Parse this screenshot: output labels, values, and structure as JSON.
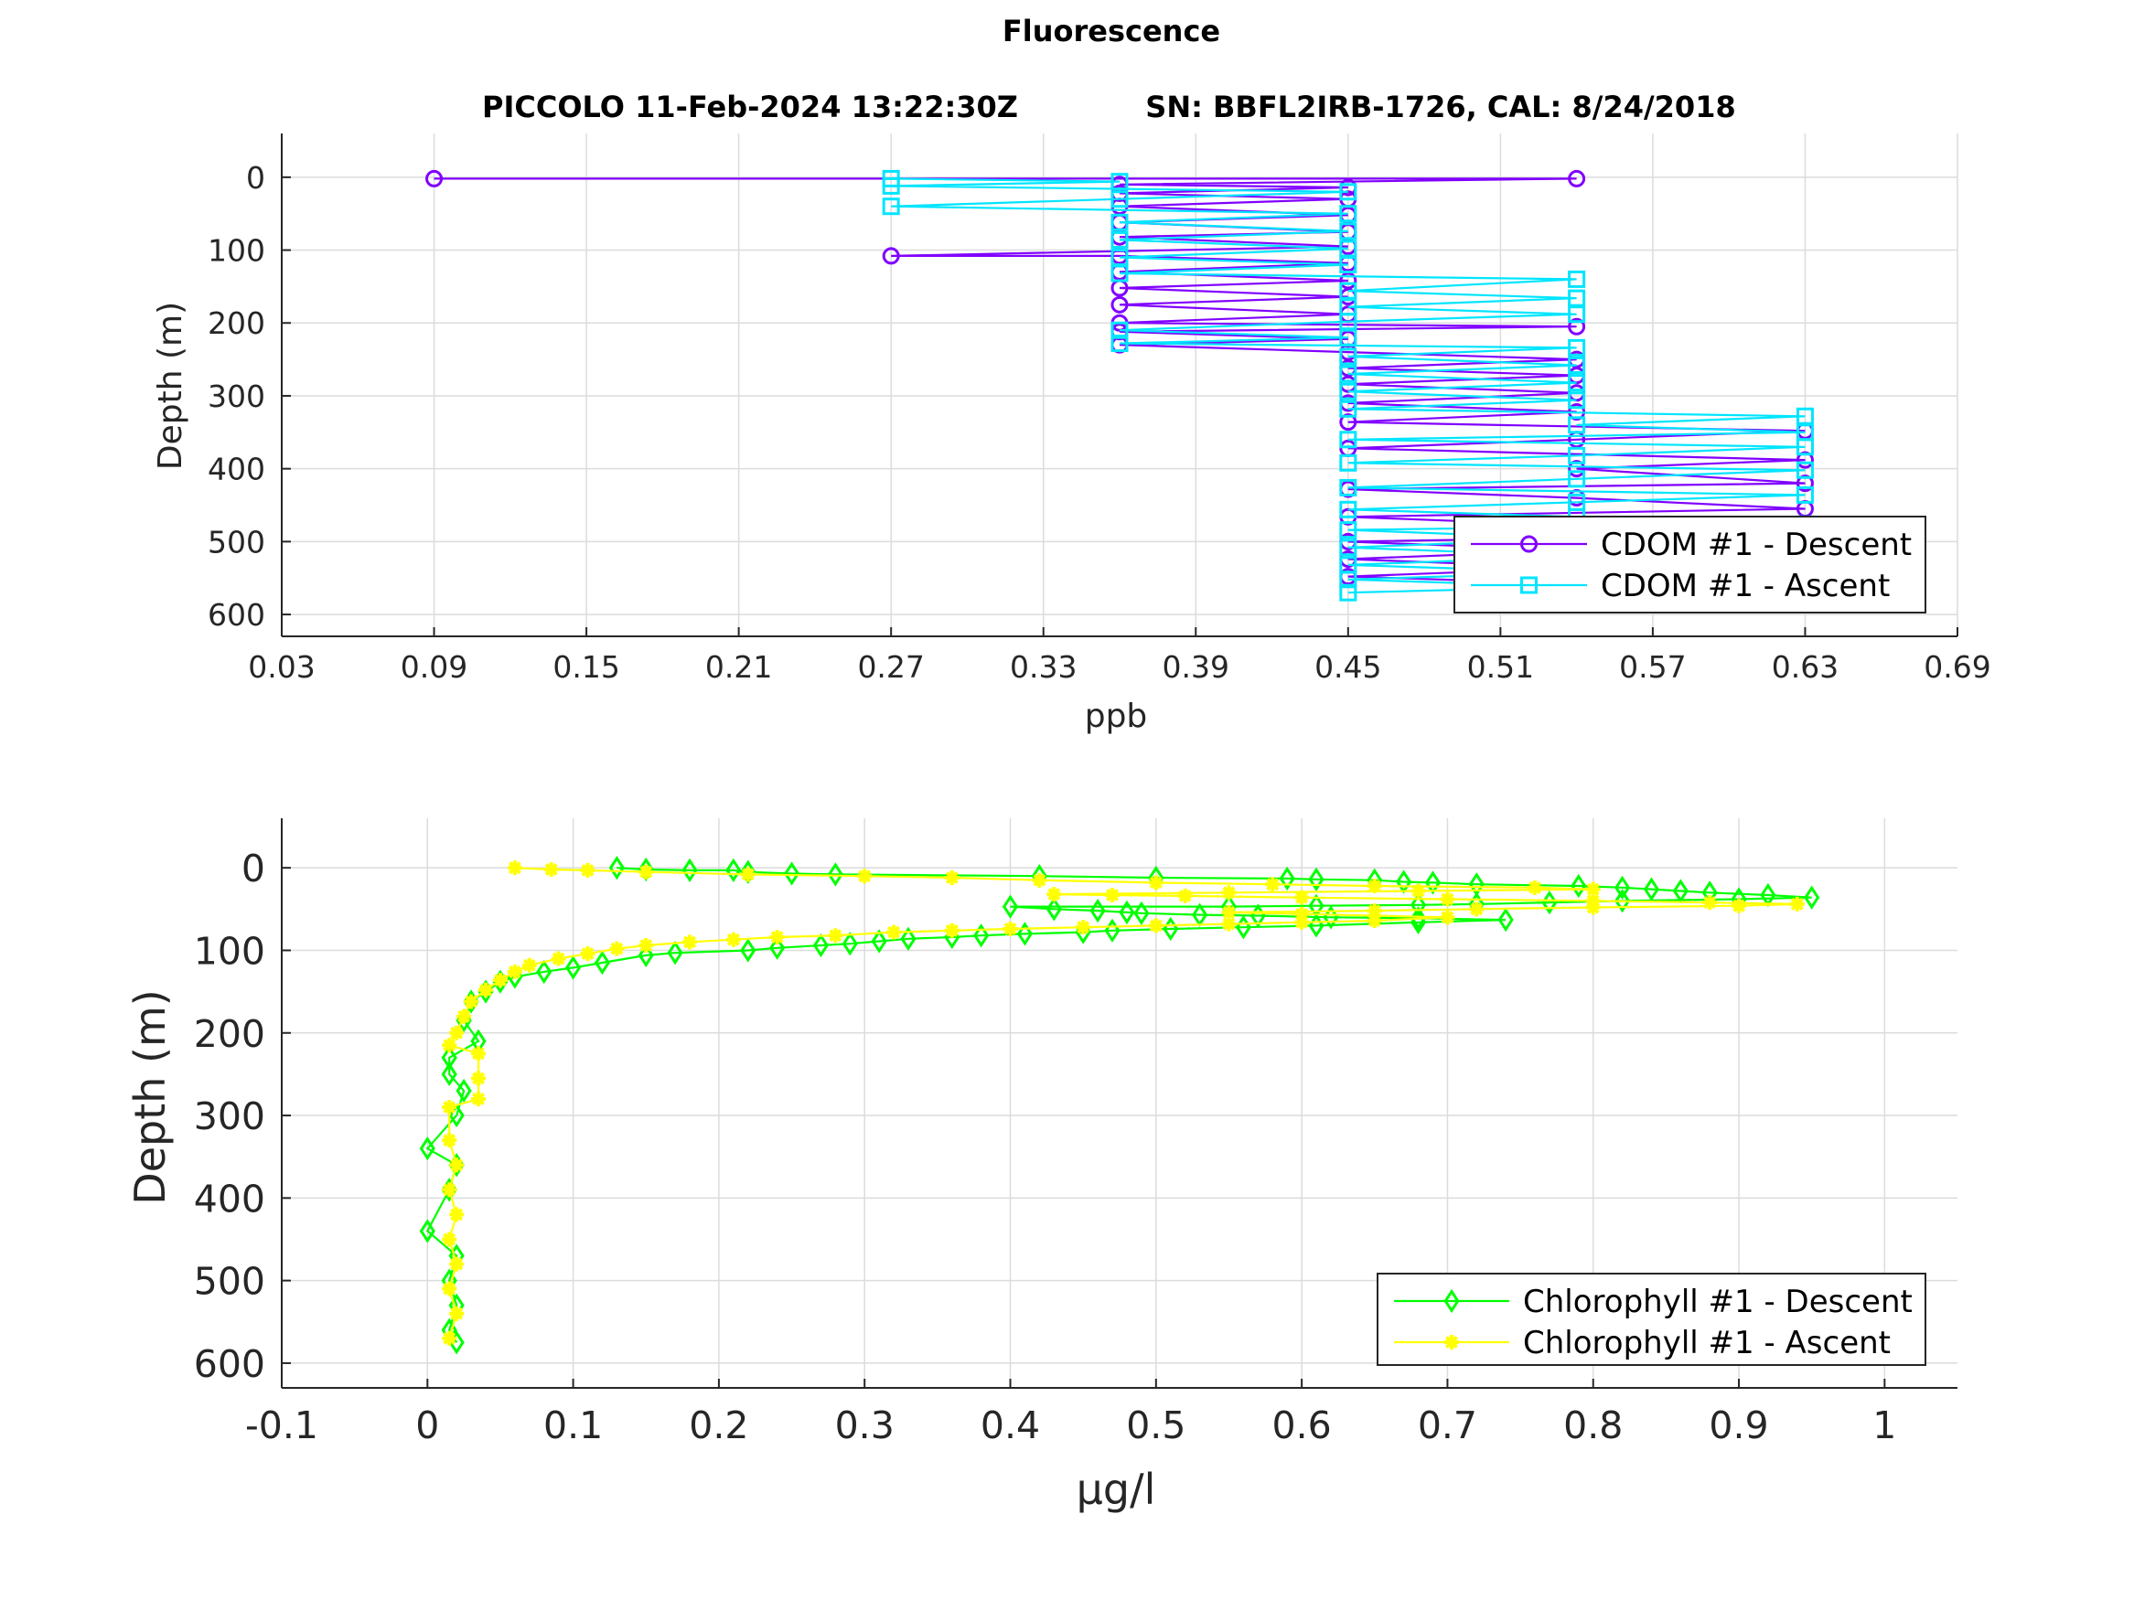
{
  "figure": {
    "title": "Fluorescence"
  },
  "chart_data": [
    {
      "type": "line",
      "subtitle_left": "PICCOLO 11-Feb-2024 13:22:30Z",
      "subtitle_right": "SN: BBFL2IRB-1726, CAL: 8/24/2018",
      "xlabel": "ppb",
      "ylabel": "Depth (m)",
      "xlim": [
        0.03,
        0.69
      ],
      "ylim": [
        630,
        -60
      ],
      "y_reversed": true,
      "xticks": [
        "0.03",
        "0.09",
        "0.15",
        "0.21",
        "0.27",
        "0.33",
        "0.39",
        "0.45",
        "0.51",
        "0.57",
        "0.63",
        "0.69"
      ],
      "yticks": [
        "0",
        "100",
        "200",
        "300",
        "400",
        "500",
        "600"
      ],
      "grid": true,
      "legend_position": "bottom-right",
      "series": [
        {
          "name": "CDOM #1 - Descent",
          "color": "#8000ff",
          "marker": "circle",
          "points": [
            [
              0.09,
              2
            ],
            [
              0.54,
              2
            ],
            [
              0.36,
              10
            ],
            [
              0.45,
              14
            ],
            [
              0.36,
              22
            ],
            [
              0.45,
              30
            ],
            [
              0.36,
              40
            ],
            [
              0.45,
              52
            ],
            [
              0.36,
              62
            ],
            [
              0.45,
              75
            ],
            [
              0.36,
              82
            ],
            [
              0.45,
              95
            ],
            [
              0.27,
              108
            ],
            [
              0.36,
              108
            ],
            [
              0.45,
              118
            ],
            [
              0.36,
              130
            ],
            [
              0.45,
              142
            ],
            [
              0.36,
              152
            ],
            [
              0.45,
              164
            ],
            [
              0.36,
              175
            ],
            [
              0.45,
              188
            ],
            [
              0.36,
              200
            ],
            [
              0.54,
              205
            ],
            [
              0.36,
              212
            ],
            [
              0.45,
              222
            ],
            [
              0.36,
              230
            ],
            [
              0.45,
              240
            ],
            [
              0.54,
              250
            ],
            [
              0.45,
              262
            ],
            [
              0.54,
              272
            ],
            [
              0.45,
              284
            ],
            [
              0.54,
              296
            ],
            [
              0.45,
              310
            ],
            [
              0.54,
              322
            ],
            [
              0.45,
              336
            ],
            [
              0.63,
              348
            ],
            [
              0.54,
              360
            ],
            [
              0.45,
              372
            ],
            [
              0.63,
              388
            ],
            [
              0.54,
              400
            ],
            [
              0.63,
              420
            ],
            [
              0.45,
              428
            ],
            [
              0.54,
              440
            ],
            [
              0.63,
              455
            ],
            [
              0.45,
              466
            ],
            [
              0.54,
              478
            ],
            [
              0.63,
              490
            ],
            [
              0.45,
              500
            ],
            [
              0.54,
              512
            ],
            [
              0.45,
              524
            ],
            [
              0.54,
              536
            ],
            [
              0.45,
              548
            ],
            [
              0.54,
              558
            ],
            [
              0.63,
              572
            ]
          ]
        },
        {
          "name": "CDOM #1 - Ascent",
          "color": "#00e5ff",
          "marker": "square",
          "points": [
            [
              0.45,
              570
            ],
            [
              0.54,
              562
            ],
            [
              0.45,
              552
            ],
            [
              0.54,
              542
            ],
            [
              0.45,
              532
            ],
            [
              0.54,
              520
            ],
            [
              0.45,
              508
            ],
            [
              0.54,
              496
            ],
            [
              0.45,
              484
            ],
            [
              0.63,
              476
            ],
            [
              0.54,
              466
            ],
            [
              0.45,
              456
            ],
            [
              0.54,
              446
            ],
            [
              0.63,
              436
            ],
            [
              0.45,
              426
            ],
            [
              0.54,
              414
            ],
            [
              0.63,
              402
            ],
            [
              0.45,
              392
            ],
            [
              0.54,
              382
            ],
            [
              0.63,
              370
            ],
            [
              0.45,
              360
            ],
            [
              0.63,
              350
            ],
            [
              0.54,
              340
            ],
            [
              0.63,
              328
            ],
            [
              0.45,
              318
            ],
            [
              0.54,
              306
            ],
            [
              0.45,
              294
            ],
            [
              0.54,
              282
            ],
            [
              0.45,
              270
            ],
            [
              0.54,
              258
            ],
            [
              0.45,
              246
            ],
            [
              0.54,
              234
            ],
            [
              0.36,
              228
            ],
            [
              0.45,
              220
            ],
            [
              0.36,
              210
            ],
            [
              0.45,
              198
            ],
            [
              0.54,
              188
            ],
            [
              0.45,
              178
            ],
            [
              0.54,
              166
            ],
            [
              0.45,
              156
            ],
            [
              0.54,
              140
            ],
            [
              0.36,
              132
            ],
            [
              0.45,
              120
            ],
            [
              0.36,
              110
            ],
            [
              0.45,
              98
            ],
            [
              0.36,
              86
            ],
            [
              0.45,
              74
            ],
            [
              0.36,
              62
            ],
            [
              0.45,
              50
            ],
            [
              0.27,
              40
            ],
            [
              0.36,
              30
            ],
            [
              0.45,
              20
            ],
            [
              0.27,
              12
            ],
            [
              0.36,
              6
            ],
            [
              0.27,
              2
            ]
          ]
        }
      ]
    },
    {
      "type": "line",
      "xlabel": "μg/l",
      "ylabel": "Depth (m)",
      "xlim": [
        -0.1,
        1.05
      ],
      "ylim": [
        630,
        -60
      ],
      "y_reversed": true,
      "xticks": [
        "-0.1",
        "0",
        "0.1",
        "0.2",
        "0.3",
        "0.4",
        "0.5",
        "0.6",
        "0.7",
        "0.8",
        "0.9",
        "1"
      ],
      "yticks": [
        "0",
        "100",
        "200",
        "300",
        "400",
        "500",
        "600"
      ],
      "grid": true,
      "legend_position": "bottom-right",
      "series": [
        {
          "name": "Chlorophyll #1 - Descent",
          "color": "#00ff00",
          "marker": "diamond",
          "points": [
            [
              0.13,
              0
            ],
            [
              0.15,
              2
            ],
            [
              0.18,
              3
            ],
            [
              0.21,
              3
            ],
            [
              0.22,
              5
            ],
            [
              0.25,
              7
            ],
            [
              0.28,
              8
            ],
            [
              0.42,
              10
            ],
            [
              0.5,
              12
            ],
            [
              0.59,
              13
            ],
            [
              0.61,
              14
            ],
            [
              0.65,
              15
            ],
            [
              0.67,
              17
            ],
            [
              0.69,
              18
            ],
            [
              0.72,
              20
            ],
            [
              0.79,
              22
            ],
            [
              0.82,
              24
            ],
            [
              0.84,
              26
            ],
            [
              0.86,
              28
            ],
            [
              0.88,
              30
            ],
            [
              0.92,
              33
            ],
            [
              0.95,
              36
            ],
            [
              0.9,
              38
            ],
            [
              0.82,
              40
            ],
            [
              0.77,
              42
            ],
            [
              0.72,
              44
            ],
            [
              0.68,
              45
            ],
            [
              0.61,
              46
            ],
            [
              0.55,
              47
            ],
            [
              0.4,
              47
            ],
            [
              0.43,
              50
            ],
            [
              0.46,
              52
            ],
            [
              0.48,
              54
            ],
            [
              0.49,
              55
            ],
            [
              0.53,
              57
            ],
            [
              0.57,
              58
            ],
            [
              0.62,
              60
            ],
            [
              0.68,
              61
            ],
            [
              0.74,
              63
            ],
            [
              0.68,
              66
            ],
            [
              0.61,
              70
            ],
            [
              0.56,
              72
            ],
            [
              0.51,
              74
            ],
            [
              0.47,
              76
            ],
            [
              0.45,
              78
            ],
            [
              0.41,
              80
            ],
            [
              0.38,
              82
            ],
            [
              0.36,
              84
            ],
            [
              0.33,
              86
            ],
            [
              0.31,
              89
            ],
            [
              0.29,
              92
            ],
            [
              0.27,
              94
            ],
            [
              0.24,
              97
            ],
            [
              0.22,
              100
            ],
            [
              0.17,
              103
            ],
            [
              0.15,
              106
            ],
            [
              0.12,
              115
            ],
            [
              0.1,
              121
            ],
            [
              0.08,
              126
            ],
            [
              0.06,
              132
            ],
            [
              0.05,
              138
            ],
            [
              0.04,
              150
            ],
            [
              0.03,
              162
            ],
            [
              0.025,
              185
            ],
            [
              0.035,
              210
            ],
            [
              0.015,
              230
            ],
            [
              0.015,
              250
            ],
            [
              0.025,
              270
            ],
            [
              0.02,
              300
            ],
            [
              0.0,
              340
            ],
            [
              0.02,
              360
            ],
            [
              0.015,
              390
            ],
            [
              0.0,
              440
            ],
            [
              0.02,
              470
            ],
            [
              0.015,
              500
            ],
            [
              0.02,
              530
            ],
            [
              0.015,
              560
            ],
            [
              0.02,
              575
            ]
          ]
        },
        {
          "name": "Chlorophyll #1 - Ascent",
          "color": "#ffff00",
          "marker": "star",
          "points": [
            [
              0.015,
              570
            ],
            [
              0.02,
              540
            ],
            [
              0.015,
              510
            ],
            [
              0.02,
              480
            ],
            [
              0.015,
              450
            ],
            [
              0.02,
              420
            ],
            [
              0.015,
              390
            ],
            [
              0.02,
              360
            ],
            [
              0.015,
              330
            ],
            [
              0.015,
              290
            ],
            [
              0.035,
              280
            ],
            [
              0.035,
              255
            ],
            [
              0.035,
              225
            ],
            [
              0.015,
              215
            ],
            [
              0.02,
              200
            ],
            [
              0.025,
              180
            ],
            [
              0.03,
              162
            ],
            [
              0.04,
              148
            ],
            [
              0.05,
              136
            ],
            [
              0.06,
              126
            ],
            [
              0.07,
              118
            ],
            [
              0.09,
              110
            ],
            [
              0.11,
              104
            ],
            [
              0.13,
              98
            ],
            [
              0.15,
              94
            ],
            [
              0.18,
              90
            ],
            [
              0.21,
              87
            ],
            [
              0.24,
              84
            ],
            [
              0.28,
              82
            ],
            [
              0.32,
              78
            ],
            [
              0.36,
              76
            ],
            [
              0.4,
              74
            ],
            [
              0.45,
              72
            ],
            [
              0.5,
              70
            ],
            [
              0.55,
              68
            ],
            [
              0.6,
              66
            ],
            [
              0.65,
              64
            ],
            [
              0.7,
              60
            ],
            [
              0.6,
              56
            ],
            [
              0.55,
              54
            ],
            [
              0.65,
              52
            ],
            [
              0.72,
              50
            ],
            [
              0.8,
              48
            ],
            [
              0.9,
              46
            ],
            [
              0.94,
              44
            ],
            [
              0.88,
              42
            ],
            [
              0.8,
              40
            ],
            [
              0.7,
              38
            ],
            [
              0.6,
              36
            ],
            [
              0.52,
              34
            ],
            [
              0.47,
              33
            ],
            [
              0.43,
              32
            ],
            [
              0.55,
              30
            ],
            [
              0.68,
              28
            ],
            [
              0.8,
              26
            ],
            [
              0.76,
              24
            ],
            [
              0.65,
              22
            ],
            [
              0.58,
              20
            ],
            [
              0.5,
              18
            ],
            [
              0.42,
              15
            ],
            [
              0.36,
              12
            ],
            [
              0.3,
              10
            ],
            [
              0.22,
              8
            ],
            [
              0.15,
              5
            ],
            [
              0.11,
              3
            ],
            [
              0.085,
              2
            ],
            [
              0.06,
              0
            ]
          ]
        }
      ]
    }
  ]
}
